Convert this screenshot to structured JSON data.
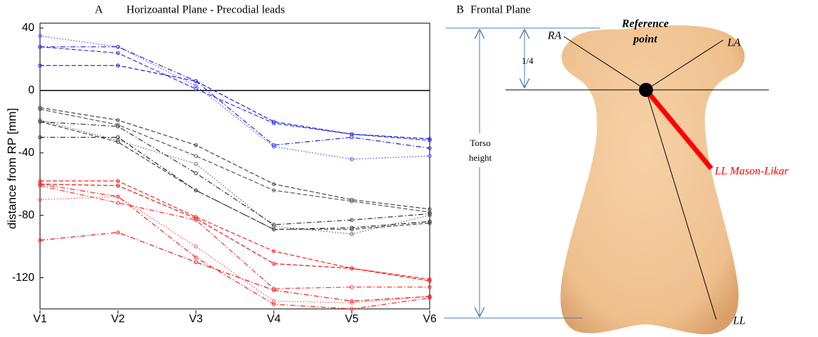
{
  "chart_data": {
    "type": "line",
    "panel": "A",
    "title": "Horizoantal Plane - Precodial leads",
    "ylabel": "distance from RP [mm]",
    "categories": [
      "V1",
      "V2",
      "V3",
      "V4",
      "V5",
      "V6"
    ],
    "ylim": [
      -140,
      40
    ],
    "yticks": [
      -120,
      -80,
      -40,
      0,
      40
    ],
    "reference_line": 0,
    "series": [
      {
        "color": "#4a4aff",
        "dash": "dotted",
        "values": [
          35,
          28,
          3,
          -36,
          -44,
          -42
        ]
      },
      {
        "color": "#2020ee",
        "dash": "dashdot",
        "values": [
          28,
          28,
          6,
          -35,
          -30,
          -37
        ]
      },
      {
        "color": "#3030f0",
        "dash": "dashed",
        "values": [
          28,
          24,
          1,
          -21,
          -28,
          -32
        ]
      },
      {
        "color": "#1818e0",
        "dash": "dashed",
        "values": [
          16,
          16,
          6,
          -20,
          -28,
          -31
        ]
      },
      {
        "color": "#444444",
        "dash": "dashed",
        "values": [
          -11,
          -19,
          -35,
          -60,
          -70,
          -76
        ]
      },
      {
        "color": "#555555",
        "dash": "dashed",
        "values": [
          -12,
          -22,
          -42,
          -64,
          -71,
          -78
        ]
      },
      {
        "color": "#666666",
        "dash": "dotted",
        "values": [
          -19,
          -32,
          -47,
          -87,
          -92,
          -80
        ]
      },
      {
        "color": "#333333",
        "dash": "dashdot",
        "values": [
          -20,
          -23,
          -53,
          -86,
          -83,
          -79
        ]
      },
      {
        "color": "#222222",
        "dash": "dashdot",
        "values": [
          -30,
          -30,
          -64,
          -89,
          -88,
          -84
        ]
      },
      {
        "color": "#444444",
        "dash": "dashed",
        "values": [
          -20,
          -33,
          -64,
          -89,
          -89,
          -85
        ]
      },
      {
        "color": "#ff2020",
        "dash": "dashed",
        "values": [
          -58,
          -58,
          -81,
          -103,
          -114,
          -121
        ]
      },
      {
        "color": "#ee1010",
        "dash": "dashed",
        "values": [
          -60,
          -61,
          -82,
          -111,
          -114,
          -122
        ]
      },
      {
        "color": "#ff3030",
        "dash": "dashdot",
        "values": [
          -61,
          -72,
          -83,
          -127,
          -126,
          -126
        ]
      },
      {
        "color": "#ff5050",
        "dash": "dotted",
        "values": [
          -70,
          -68,
          -100,
          -135,
          -136,
          -132
        ]
      },
      {
        "color": "#ff2020",
        "dash": "dashdot",
        "values": [
          -60,
          -68,
          -107,
          -137,
          -140,
          -133
        ]
      },
      {
        "color": "#ee1010",
        "dash": "dashdot",
        "values": [
          -96,
          -91,
          -110,
          -128,
          -135,
          -132
        ]
      }
    ]
  },
  "diagram": {
    "panel": "B",
    "title": "Frontal Plane",
    "ra": "RA",
    "la": "LA",
    "reference": [
      "Reference",
      "point"
    ],
    "quarter": "1/4",
    "torso_height": [
      "Torso",
      "height"
    ],
    "ll_mason_likar": "LL Mason-Likar",
    "ll": "LL"
  }
}
